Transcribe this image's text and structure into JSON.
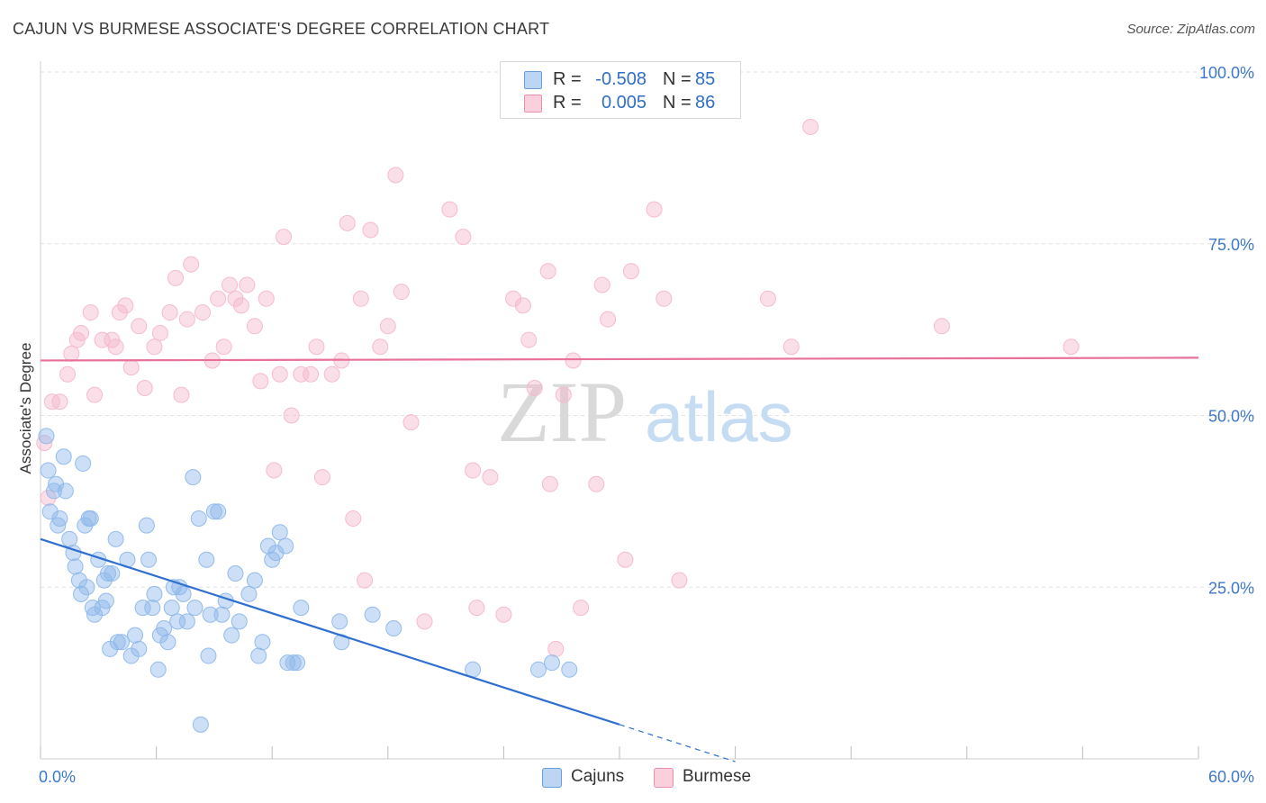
{
  "title": "CAJUN VS BURMESE ASSOCIATE'S DEGREE CORRELATION CHART",
  "source": "Source: ZipAtlas.com",
  "watermark": {
    "zip": "ZIP",
    "atlas": "atlas"
  },
  "legend": {
    "rows": [
      {
        "r_label": "R =",
        "r_value": "-0.508",
        "n_label": "N =",
        "n_value": "85",
        "color": "#a8c8f0",
        "stroke": "#6a9ee0"
      },
      {
        "r_label": "R =",
        "r_value": "0.005",
        "n_label": "N =",
        "n_value": "86",
        "color": "#f8c0d0",
        "stroke": "#e890aa"
      }
    ],
    "bottom": [
      "Cajuns",
      "Burmese"
    ]
  },
  "chart_data": {
    "type": "scatter",
    "title": "CAJUN VS BURMESE ASSOCIATE'S DEGREE CORRELATION CHART",
    "xlabel": "",
    "ylabel": "Associate's Degree",
    "xlim": [
      0,
      60
    ],
    "ylim": [
      0,
      100
    ],
    "x_tick_labels": [
      "0.0%",
      "60.0%"
    ],
    "y_ticks": [
      25,
      50,
      75,
      100
    ],
    "y_tick_labels": [
      "25.0%",
      "50.0%",
      "75.0%",
      "100.0%"
    ],
    "grid": true,
    "series": [
      {
        "name": "Cajuns",
        "color": "#8fb8ea",
        "line_color": "#2f6fd0",
        "trend": {
          "x0": 0,
          "y0": 32,
          "x1": 30,
          "y1": 5,
          "dash_to_x": 36
        },
        "points": [
          [
            0.3,
            47
          ],
          [
            0.4,
            42
          ],
          [
            0.5,
            36
          ],
          [
            0.7,
            39
          ],
          [
            0.8,
            40
          ],
          [
            0.9,
            34
          ],
          [
            1.0,
            35
          ],
          [
            1.2,
            44
          ],
          [
            1.3,
            39
          ],
          [
            1.5,
            32
          ],
          [
            1.7,
            30
          ],
          [
            1.8,
            28
          ],
          [
            2.0,
            26
          ],
          [
            2.1,
            24
          ],
          [
            2.2,
            43
          ],
          [
            2.3,
            34
          ],
          [
            2.4,
            25
          ],
          [
            2.5,
            35
          ],
          [
            2.6,
            35
          ],
          [
            2.7,
            22
          ],
          [
            2.8,
            21
          ],
          [
            3.0,
            29
          ],
          [
            3.2,
            22
          ],
          [
            3.3,
            26
          ],
          [
            3.4,
            23
          ],
          [
            3.5,
            27
          ],
          [
            3.6,
            16
          ],
          [
            3.7,
            27
          ],
          [
            3.9,
            32
          ],
          [
            4.0,
            17
          ],
          [
            4.2,
            17
          ],
          [
            4.5,
            29
          ],
          [
            4.7,
            15
          ],
          [
            4.9,
            18
          ],
          [
            5.1,
            16
          ],
          [
            5.3,
            22
          ],
          [
            5.5,
            34
          ],
          [
            5.6,
            29
          ],
          [
            5.8,
            22
          ],
          [
            5.9,
            24
          ],
          [
            6.1,
            13
          ],
          [
            6.2,
            18
          ],
          [
            6.4,
            19
          ],
          [
            6.6,
            17
          ],
          [
            6.8,
            22
          ],
          [
            6.9,
            25
          ],
          [
            7.2,
            25
          ],
          [
            7.4,
            24
          ],
          [
            7.6,
            20
          ],
          [
            7.9,
            41
          ],
          [
            8.0,
            22
          ],
          [
            8.2,
            35
          ],
          [
            8.3,
            5
          ],
          [
            8.6,
            29
          ],
          [
            8.7,
            15
          ],
          [
            8.8,
            21
          ],
          [
            9.0,
            36
          ],
          [
            9.2,
            36
          ],
          [
            9.4,
            21
          ],
          [
            9.6,
            23
          ],
          [
            9.9,
            18
          ],
          [
            10.1,
            27
          ],
          [
            10.3,
            20
          ],
          [
            10.8,
            24
          ],
          [
            11.1,
            26
          ],
          [
            11.3,
            15
          ],
          [
            11.5,
            17
          ],
          [
            11.8,
            31
          ],
          [
            12.0,
            29
          ],
          [
            12.2,
            30
          ],
          [
            12.4,
            33
          ],
          [
            12.7,
            31
          ],
          [
            12.8,
            14
          ],
          [
            13.1,
            14
          ],
          [
            13.3,
            14
          ],
          [
            13.5,
            22
          ],
          [
            15.5,
            20
          ],
          [
            15.6,
            17
          ],
          [
            17.2,
            21
          ],
          [
            18.3,
            19
          ],
          [
            22.4,
            13
          ],
          [
            25.8,
            13
          ],
          [
            26.5,
            14
          ],
          [
            27.4,
            13
          ],
          [
            7.1,
            20
          ]
        ]
      },
      {
        "name": "Burmese",
        "color": "#f5b8cb",
        "line_color": "#e8709a",
        "trend": {
          "x0": 0,
          "y0": 58,
          "x1": 60,
          "y1": 58.4
        },
        "points": [
          [
            0.2,
            46
          ],
          [
            0.4,
            38
          ],
          [
            0.6,
            52
          ],
          [
            1.0,
            52
          ],
          [
            1.4,
            56
          ],
          [
            1.6,
            59
          ],
          [
            1.9,
            61
          ],
          [
            2.1,
            62
          ],
          [
            2.6,
            65
          ],
          [
            2.8,
            53
          ],
          [
            3.2,
            61
          ],
          [
            3.7,
            61
          ],
          [
            3.9,
            60
          ],
          [
            4.1,
            65
          ],
          [
            4.4,
            66
          ],
          [
            4.7,
            57
          ],
          [
            5.1,
            63
          ],
          [
            5.4,
            54
          ],
          [
            5.9,
            60
          ],
          [
            6.2,
            62
          ],
          [
            6.7,
            65
          ],
          [
            7.0,
            70
          ],
          [
            7.3,
            53
          ],
          [
            7.6,
            64
          ],
          [
            7.8,
            72
          ],
          [
            8.4,
            65
          ],
          [
            8.9,
            58
          ],
          [
            9.2,
            67
          ],
          [
            9.5,
            60
          ],
          [
            9.8,
            69
          ],
          [
            10.1,
            67
          ],
          [
            10.4,
            66
          ],
          [
            10.7,
            69
          ],
          [
            11.1,
            63
          ],
          [
            11.4,
            55
          ],
          [
            11.7,
            67
          ],
          [
            12.1,
            42
          ],
          [
            12.4,
            56
          ],
          [
            12.6,
            76
          ],
          [
            13.0,
            50
          ],
          [
            13.5,
            56
          ],
          [
            14.3,
            60
          ],
          [
            14.6,
            41
          ],
          [
            15.1,
            56
          ],
          [
            15.6,
            58
          ],
          [
            15.9,
            78
          ],
          [
            16.2,
            35
          ],
          [
            16.6,
            67
          ],
          [
            17.1,
            77
          ],
          [
            17.6,
            60
          ],
          [
            18.0,
            63
          ],
          [
            18.4,
            85
          ],
          [
            18.7,
            68
          ],
          [
            19.2,
            49
          ],
          [
            19.9,
            20
          ],
          [
            21.2,
            80
          ],
          [
            21.9,
            76
          ],
          [
            22.4,
            42
          ],
          [
            22.6,
            22
          ],
          [
            23.3,
            41
          ],
          [
            24.0,
            21
          ],
          [
            24.5,
            67
          ],
          [
            25.0,
            66
          ],
          [
            25.3,
            61
          ],
          [
            25.6,
            54
          ],
          [
            26.3,
            71
          ],
          [
            26.4,
            40
          ],
          [
            26.7,
            16
          ],
          [
            27.1,
            53
          ],
          [
            27.6,
            58
          ],
          [
            28.0,
            22
          ],
          [
            28.8,
            40
          ],
          [
            29.1,
            69
          ],
          [
            29.4,
            64
          ],
          [
            30.3,
            29
          ],
          [
            30.6,
            71
          ],
          [
            31.8,
            80
          ],
          [
            32.3,
            67
          ],
          [
            33.1,
            26
          ],
          [
            37.7,
            67
          ],
          [
            38.9,
            60
          ],
          [
            39.9,
            92
          ],
          [
            46.7,
            63
          ],
          [
            53.4,
            60
          ],
          [
            16.8,
            26
          ],
          [
            14.0,
            56
          ]
        ]
      }
    ]
  }
}
